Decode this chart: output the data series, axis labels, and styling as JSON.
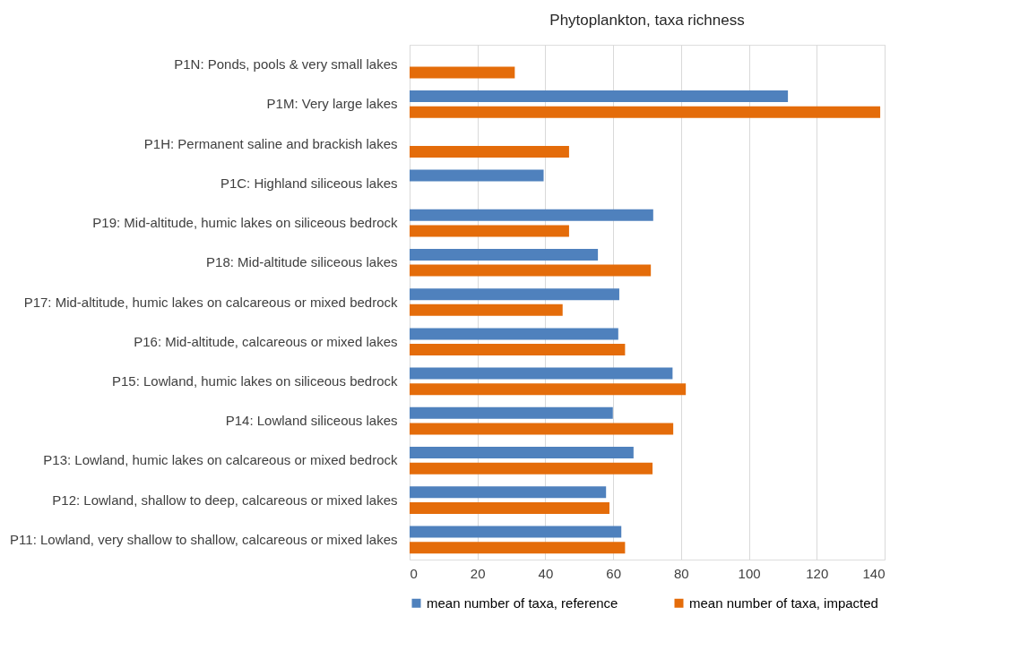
{
  "chart_data": {
    "type": "bar",
    "orientation": "horizontal",
    "title": "Phytoplankton, taxa richness",
    "categories": [
      "P1N: Ponds, pools & very small lakes",
      "P1M: Very large lakes",
      "P1H: Permanent saline and brackish lakes",
      "P1C: Highland siliceous lakes",
      "P19: Mid-altitude, humic lakes on siliceous bedrock",
      "P18: Mid-altitude siliceous lakes",
      "P17: Mid-altitude, humic lakes on calcareous or mixed bedrock",
      "P16: Mid-altitude, calcareous or mixed lakes",
      "P15: Lowland, humic lakes on siliceous bedrock",
      "P14: Lowland siliceous lakes",
      "P13: Lowland, humic lakes on calcareous or mixed bedrock",
      "P12: Lowland, shallow to deep, calcareous or mixed lakes",
      "P11: Lowland, very shallow to shallow, calcareous or mixed lakes"
    ],
    "series": [
      {
        "name": "mean number of taxa, reference",
        "color": "#4f81bd",
        "values": [
          null,
          111.5,
          null,
          39.5,
          71.8,
          55.5,
          61.8,
          61.5,
          77.5,
          59.9,
          66,
          57.9,
          62.4
        ]
      },
      {
        "name": "mean number of taxa, impacted",
        "color": "#e46c0a",
        "values": [
          31,
          138.7,
          47,
          null,
          47,
          71.1,
          45.1,
          63.5,
          81.4,
          77.7,
          71.6,
          58.9,
          63.5
        ]
      }
    ],
    "xlim": [
      0,
      140
    ],
    "xticks": [
      0,
      20,
      40,
      60,
      80,
      100,
      120,
      140
    ],
    "grid": "x",
    "legend": "bottom"
  }
}
